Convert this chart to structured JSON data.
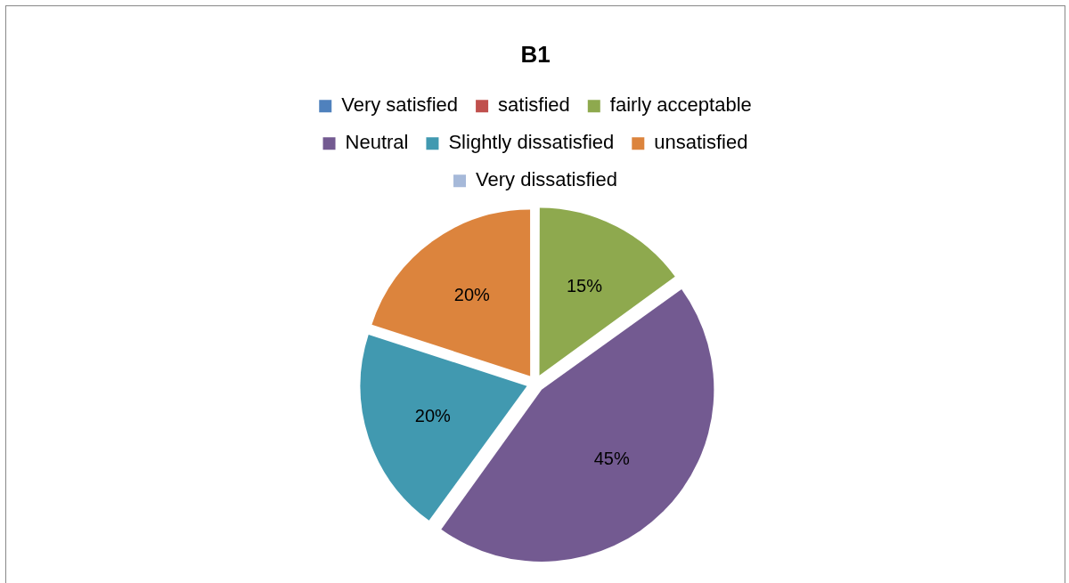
{
  "chart_data": {
    "type": "pie",
    "title": "B1",
    "categories": [
      "Very satisfied",
      "satisfied",
      "fairly acceptable",
      "Neutral",
      "Slightly dissatisfied",
      "unsatisfied",
      "Very dissatisfied"
    ],
    "values": [
      0,
      0,
      15,
      45,
      20,
      20,
      0
    ],
    "colors": [
      "#4f81bd",
      "#c0504d",
      "#8ea94e",
      "#735a91",
      "#4199b0",
      "#dc843d",
      "#a6b9d9"
    ],
    "value_labels": [
      null,
      null,
      "15%",
      "45%",
      "20%",
      "20%",
      null
    ],
    "legend": "top"
  }
}
